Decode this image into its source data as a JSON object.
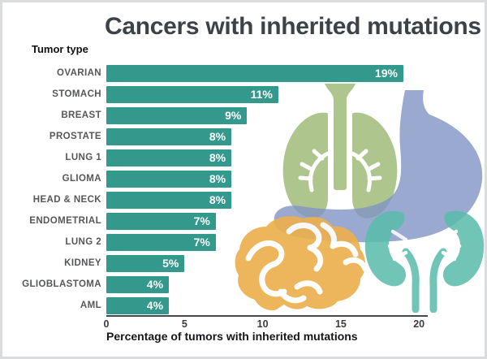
{
  "window": {
    "background": "#ffffff",
    "border_color": "#dbdcdd"
  },
  "chart_data": {
    "type": "bar",
    "orientation": "horizontal",
    "title": "Cancers with inherited mutations",
    "categories_label": "Tumor type",
    "categories": [
      "OVARIAN",
      "STOMACH",
      "BREAST",
      "PROSTATE",
      "LUNG 1",
      "GLIOMA",
      "HEAD & NECK",
      "ENDOMETRIAL",
      "LUNG 2",
      "KIDNEY",
      "GLIOBLASTOMA",
      "AML"
    ],
    "values": [
      19,
      11,
      9,
      8,
      8,
      8,
      8,
      7,
      7,
      5,
      4,
      4
    ],
    "value_labels": [
      "19%",
      "11%",
      "9%",
      "8%",
      "8%",
      "8%",
      "8%",
      "7%",
      "7%",
      "5%",
      "4%",
      "4%"
    ],
    "xlabel": "Percentage of tumors with inherited mutations",
    "xlim": [
      0,
      20.5
    ],
    "xticks": [
      0,
      5,
      10,
      15,
      20
    ],
    "grid": false,
    "legend": null,
    "bar_color": "#33998c",
    "value_label_color": "#ffffff",
    "title_color": "#3d4248"
  },
  "decorations": {
    "organs": [
      {
        "name": "lungs",
        "color": "#a6bf82",
        "opacity": 0.9
      },
      {
        "name": "stomach",
        "color": "#8294c4",
        "opacity": 0.8
      },
      {
        "name": "brain",
        "color": "#ecb04f",
        "opacity": 0.92
      },
      {
        "name": "kidneys",
        "color": "#58bcab",
        "opacity": 0.85
      }
    ]
  }
}
